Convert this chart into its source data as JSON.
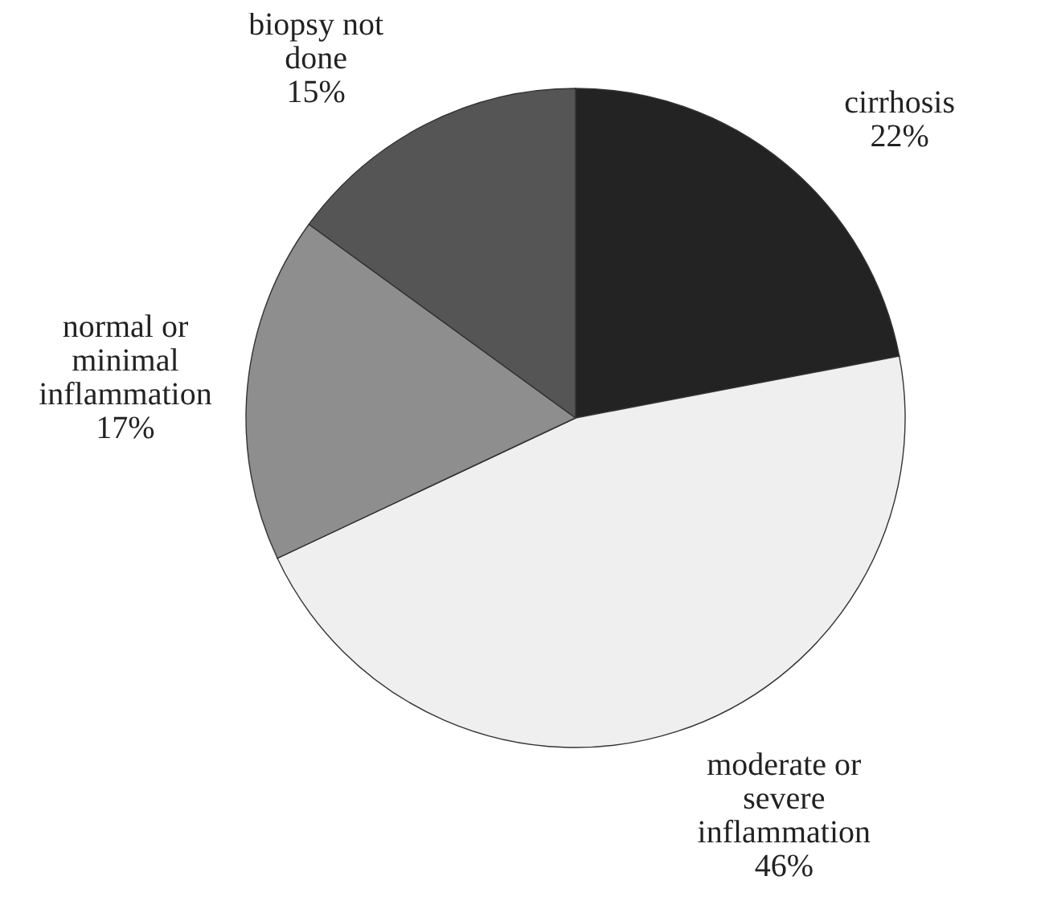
{
  "chart_data": {
    "type": "pie",
    "categories": [
      "cirrhosis",
      "moderate or severe inflammation",
      "normal or minimal inflammation",
      "biopsy not done"
    ],
    "values": [
      22,
      46,
      17,
      15
    ],
    "value_labels": [
      "22%",
      "46%",
      "17%",
      "15%"
    ],
    "colors": [
      "#232323",
      "#efefef",
      "#8e8e8e",
      "#555555"
    ]
  }
}
